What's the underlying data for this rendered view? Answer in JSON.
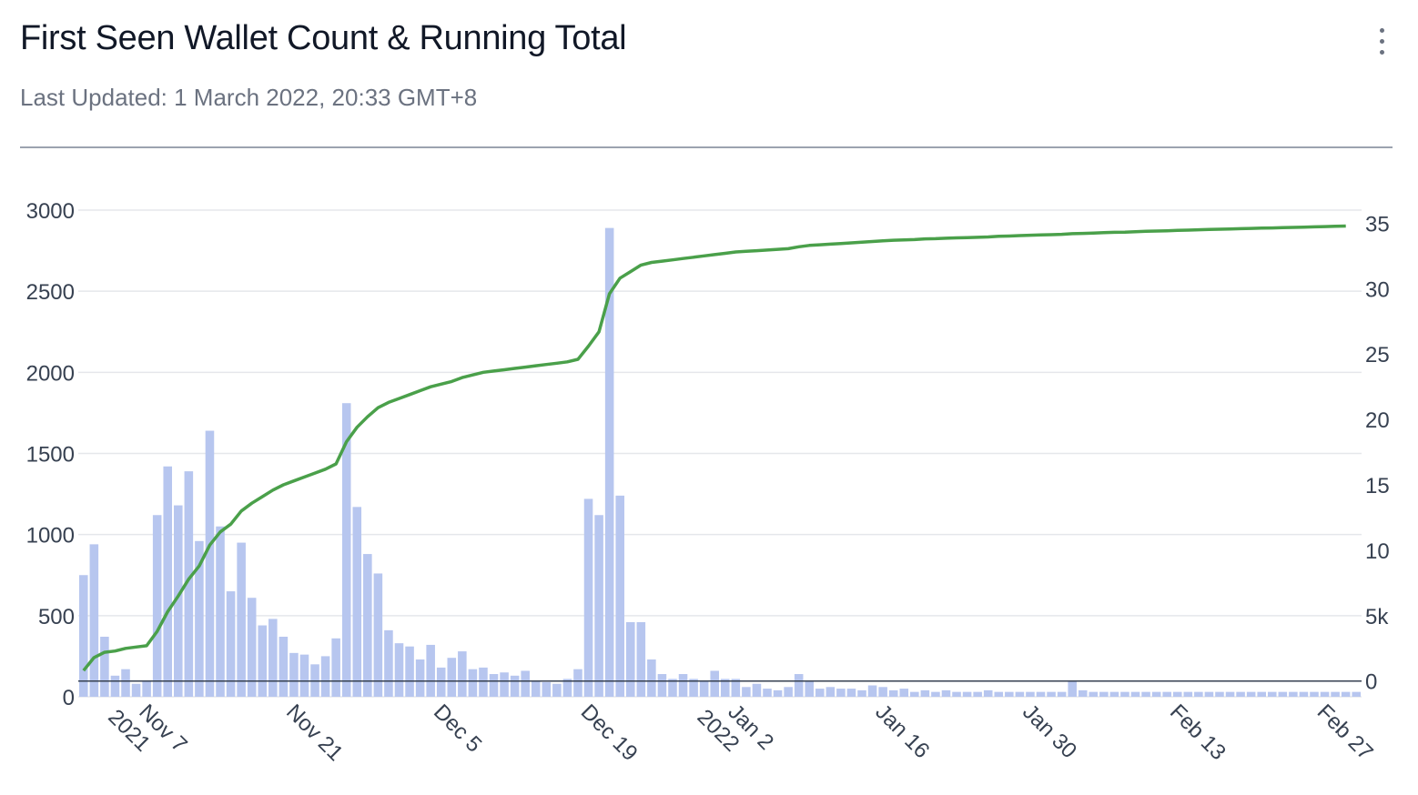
{
  "header": {
    "title": "First Seen Wallet Count & Running Total",
    "subtitle": "Last Updated: 1 March 2022, 20:33 GMT+8",
    "menu_icon": "more-vertical-icon"
  },
  "colors": {
    "bar": "#b7c6ef",
    "line": "#4aa04a",
    "grid": "#e5e7eb",
    "zero_line": "#374151"
  },
  "chart_data": {
    "type": "bar",
    "title": "First Seen Wallet Count & Running Total",
    "start_date": "2021-11-02",
    "y_left": {
      "ticks": [
        "0",
        "500",
        "1000",
        "1500",
        "2000",
        "2500",
        "3000"
      ],
      "range": [
        0,
        3000
      ]
    },
    "y_right": {
      "ticks": [
        "0",
        "5k",
        "10",
        "15",
        "20",
        "25",
        "30",
        "35"
      ],
      "range": [
        -1.2,
        36.0
      ]
    },
    "x_ticks": [
      {
        "date": "2021-11-07",
        "label": "Nov 7",
        "label2": "2021"
      },
      {
        "date": "2021-11-21",
        "label": "Nov 21",
        "label2": ""
      },
      {
        "date": "2021-12-05",
        "label": "Dec 5",
        "label2": ""
      },
      {
        "date": "2021-12-19",
        "label": "Dec 19",
        "label2": ""
      },
      {
        "date": "2022-01-02",
        "label": "Jan 2",
        "label2": "2022"
      },
      {
        "date": "2022-01-16",
        "label": "Jan 16",
        "label2": ""
      },
      {
        "date": "2022-01-30",
        "label": "Jan 30",
        "label2": ""
      },
      {
        "date": "2022-02-13",
        "label": "Feb 13",
        "label2": ""
      },
      {
        "date": "2022-02-27",
        "label": "Feb 27",
        "label2": ""
      }
    ],
    "series": [
      {
        "type": "bar",
        "axis": "left",
        "values": [
          750,
          940,
          370,
          130,
          170,
          80,
          100,
          1120,
          1420,
          1180,
          1390,
          960,
          1640,
          1050,
          650,
          950,
          610,
          440,
          480,
          370,
          270,
          260,
          200,
          250,
          360,
          1810,
          1170,
          880,
          760,
          410,
          330,
          310,
          230,
          320,
          180,
          240,
          280,
          170,
          180,
          140,
          150,
          130,
          160,
          100,
          90,
          80,
          110,
          170,
          1220,
          1120,
          2890,
          1240,
          460,
          460,
          230,
          140,
          110,
          140,
          110,
          100,
          160,
          110,
          110,
          60,
          80,
          50,
          40,
          60,
          140,
          100,
          50,
          60,
          50,
          50,
          40,
          70,
          60,
          40,
          50,
          30,
          40,
          30,
          40,
          30,
          30,
          30,
          40,
          30,
          30,
          30,
          30,
          30,
          30,
          30,
          100,
          40,
          30,
          30,
          30,
          30,
          30,
          30,
          30,
          30,
          30,
          30,
          30,
          30,
          30,
          30,
          30,
          30,
          30,
          30,
          30,
          30,
          30,
          30,
          30,
          30,
          30,
          30
        ]
      },
      {
        "type": "line",
        "axis": "right",
        "points": [
          [
            0,
            0.8
          ],
          [
            1,
            1.8
          ],
          [
            2,
            2.2
          ],
          [
            3,
            2.3
          ],
          [
            4,
            2.5
          ],
          [
            5,
            2.6
          ],
          [
            6,
            2.7
          ],
          [
            7,
            3.8
          ],
          [
            8,
            5.3
          ],
          [
            9,
            6.5
          ],
          [
            10,
            7.8
          ],
          [
            11,
            8.8
          ],
          [
            12,
            10.4
          ],
          [
            13,
            11.4
          ],
          [
            14,
            12.0
          ],
          [
            15,
            13.0
          ],
          [
            16,
            13.6
          ],
          [
            17,
            14.1
          ],
          [
            18,
            14.6
          ],
          [
            19,
            15.0
          ],
          [
            20,
            15.3
          ],
          [
            21,
            15.6
          ],
          [
            22,
            15.9
          ],
          [
            23,
            16.2
          ],
          [
            24,
            16.6
          ],
          [
            25,
            18.3
          ],
          [
            26,
            19.4
          ],
          [
            27,
            20.2
          ],
          [
            28,
            20.9
          ],
          [
            29,
            21.3
          ],
          [
            30,
            21.6
          ],
          [
            31,
            21.9
          ],
          [
            32,
            22.2
          ],
          [
            33,
            22.5
          ],
          [
            34,
            22.7
          ],
          [
            35,
            22.9
          ],
          [
            36,
            23.2
          ],
          [
            37,
            23.4
          ],
          [
            38,
            23.6
          ],
          [
            39,
            23.7
          ],
          [
            40,
            23.8
          ],
          [
            41,
            23.9
          ],
          [
            42,
            24.0
          ],
          [
            43,
            24.1
          ],
          [
            44,
            24.2
          ],
          [
            45,
            24.3
          ],
          [
            46,
            24.4
          ],
          [
            47,
            24.6
          ],
          [
            48,
            25.6
          ],
          [
            49,
            26.7
          ],
          [
            50,
            29.6
          ],
          [
            51,
            30.8
          ],
          [
            52,
            31.3
          ],
          [
            53,
            31.8
          ],
          [
            54,
            32.0
          ],
          [
            55,
            32.1
          ],
          [
            56,
            32.2
          ],
          [
            57,
            32.3
          ],
          [
            58,
            32.4
          ],
          [
            59,
            32.5
          ],
          [
            60,
            32.6
          ],
          [
            61,
            32.7
          ],
          [
            62,
            32.8
          ],
          [
            63,
            32.85
          ],
          [
            64,
            32.9
          ],
          [
            65,
            32.95
          ],
          [
            66,
            33.0
          ],
          [
            67,
            33.05
          ],
          [
            68,
            33.2
          ],
          [
            69,
            33.3
          ],
          [
            70,
            33.35
          ],
          [
            71,
            33.4
          ],
          [
            72,
            33.45
          ],
          [
            73,
            33.5
          ],
          [
            74,
            33.55
          ],
          [
            75,
            33.6
          ],
          [
            76,
            33.65
          ],
          [
            77,
            33.7
          ],
          [
            78,
            33.72
          ],
          [
            79,
            33.75
          ],
          [
            80,
            33.8
          ],
          [
            81,
            33.82
          ],
          [
            82,
            33.85
          ],
          [
            83,
            33.88
          ],
          [
            84,
            33.9
          ],
          [
            85,
            33.92
          ],
          [
            86,
            33.95
          ],
          [
            87,
            34.0
          ],
          [
            88,
            34.02
          ],
          [
            89,
            34.05
          ],
          [
            90,
            34.08
          ],
          [
            91,
            34.1
          ],
          [
            92,
            34.12
          ],
          [
            93,
            34.15
          ],
          [
            94,
            34.2
          ],
          [
            95,
            34.22
          ],
          [
            96,
            34.25
          ],
          [
            97,
            34.28
          ],
          [
            98,
            34.3
          ],
          [
            99,
            34.32
          ],
          [
            100,
            34.35
          ],
          [
            101,
            34.38
          ],
          [
            102,
            34.4
          ],
          [
            103,
            34.42
          ],
          [
            104,
            34.45
          ],
          [
            105,
            34.47
          ],
          [
            106,
            34.5
          ],
          [
            107,
            34.52
          ],
          [
            108,
            34.54
          ],
          [
            109,
            34.56
          ],
          [
            110,
            34.58
          ],
          [
            111,
            34.6
          ],
          [
            112,
            34.62
          ],
          [
            113,
            34.64
          ],
          [
            114,
            34.66
          ],
          [
            115,
            34.68
          ],
          [
            116,
            34.7
          ],
          [
            117,
            34.72
          ],
          [
            118,
            34.74
          ],
          [
            119,
            34.76
          ],
          [
            120,
            34.78
          ]
        ]
      }
    ],
    "grid": true
  }
}
